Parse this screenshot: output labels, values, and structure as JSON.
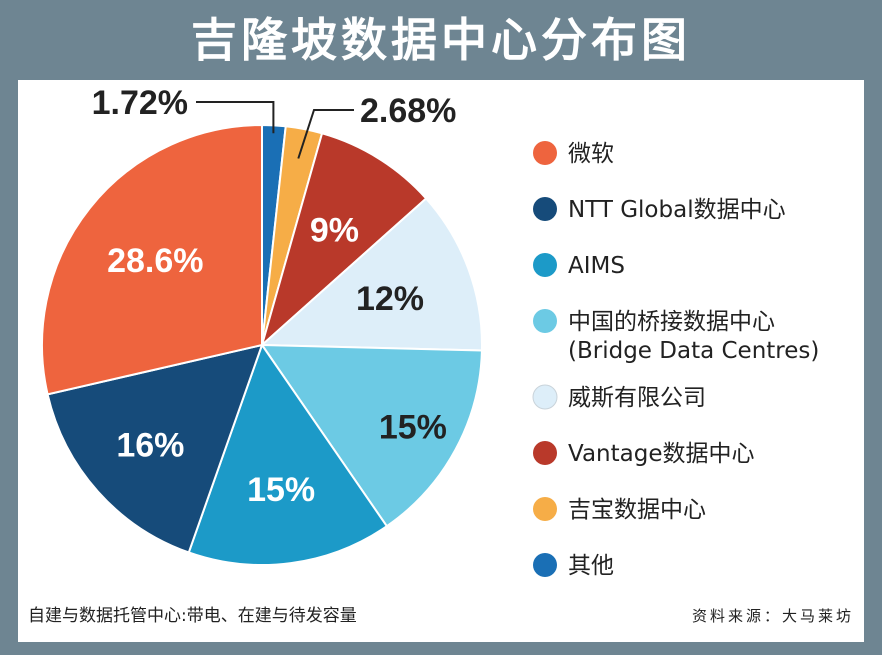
{
  "title": "吉隆坡数据中心分布图",
  "chart_data": {
    "type": "pie",
    "title": "吉隆坡数据中心分布图",
    "slices": [
      {
        "name": "其他",
        "value": 1.72,
        "label": "1.72%",
        "color": "#1a6fb5"
      },
      {
        "name": "吉宝数据中心",
        "value": 2.68,
        "label": "2.68%",
        "color": "#f6ad47"
      },
      {
        "name": "Vantage数据中心",
        "value": 9,
        "label": "9%",
        "color": "#b9392a"
      },
      {
        "name": "威斯有限公司",
        "value": 12,
        "label": "12%",
        "color": "#ddeef9"
      },
      {
        "name": "中国的桥接数据中心(Bridge Data Centres)",
        "value": 15,
        "label": "15%",
        "color": "#6ccae4"
      },
      {
        "name": "AIMS",
        "value": 15,
        "label": "15%",
        "color": "#1c9ac8"
      },
      {
        "name": "NTT Global数据中心",
        "value": 16,
        "label": "16%",
        "color": "#164b7a"
      },
      {
        "name": "微软",
        "value": 28.6,
        "label": "28.6%",
        "color": "#ee643e"
      }
    ],
    "legend": [
      {
        "lines": [
          "微软"
        ],
        "color": "#ee643e"
      },
      {
        "lines": [
          "NTT Global数据中心"
        ],
        "color": "#164b7a"
      },
      {
        "lines": [
          "AIMS"
        ],
        "color": "#1c9ac8"
      },
      {
        "lines": [
          "中国的桥接数据中心",
          "(Bridge Data Centres)"
        ],
        "color": "#6ccae4"
      },
      {
        "lines": [
          "威斯有限公司"
        ],
        "color": "#ddeef9"
      },
      {
        "lines": [
          "Vantage数据中心"
        ],
        "color": "#b9392a"
      },
      {
        "lines": [
          "吉宝数据中心"
        ],
        "color": "#f6ad47"
      },
      {
        "lines": [
          "其他"
        ],
        "color": "#1a6fb5"
      }
    ],
    "legend_position": "right"
  },
  "footnote": "自建与数据托管中心:带电、在建与待发容量",
  "source": "资料来源：大马莱坊"
}
